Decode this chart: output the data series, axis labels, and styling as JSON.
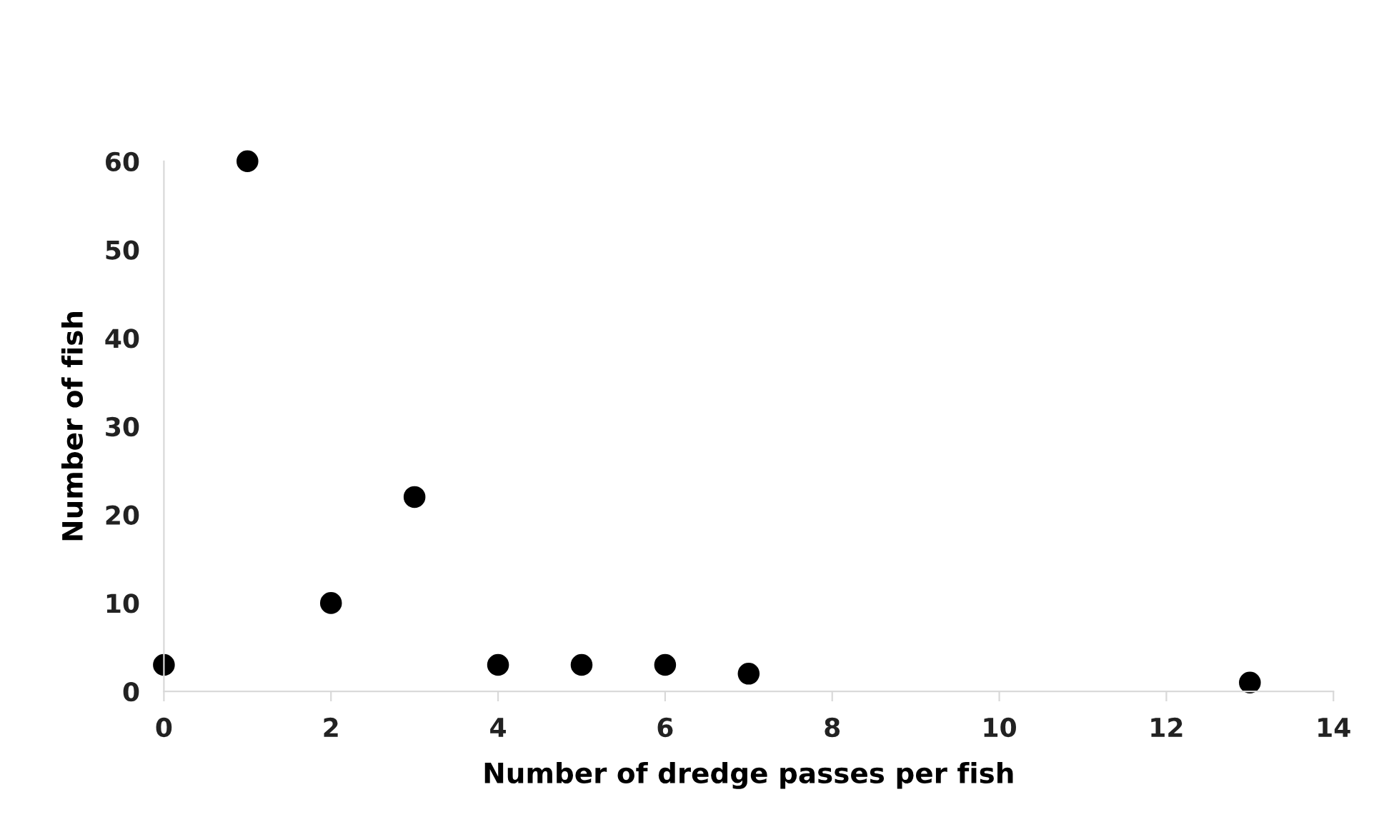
{
  "chart_data": {
    "type": "scatter",
    "xlabel": "Number of dredge passes per fish",
    "ylabel": "Number of fish",
    "x": [
      0,
      1,
      2,
      3,
      4,
      5,
      6,
      7,
      13
    ],
    "series": [
      {
        "color": "#000000",
        "values": [
          3,
          60,
          10,
          22,
          3,
          3,
          3,
          2,
          1
        ]
      }
    ],
    "xlim": [
      0,
      14
    ],
    "xticks": [
      0,
      2,
      4,
      6,
      8,
      10,
      12,
      14
    ],
    "ylim": [
      0,
      60
    ],
    "yticks": [
      0,
      10,
      20,
      30,
      40,
      50,
      60
    ],
    "marker": "circle",
    "grid": false,
    "legend": false
  }
}
